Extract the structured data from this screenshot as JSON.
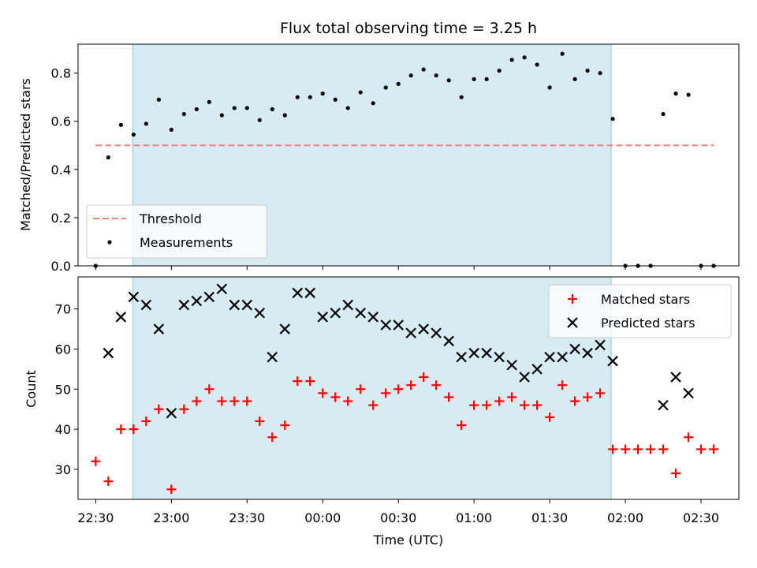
{
  "title": "Flux total observing time = 3.25 h",
  "colors": {
    "threshold": "#f08080",
    "measurement": "#000000",
    "matched": "#ff0000",
    "predicted": "#000000",
    "shade": "#add8e6"
  },
  "chart_data": [
    {
      "type": "scatter",
      "ylabel": "Matched/Predicted stars",
      "xlabel": "",
      "ylim": [
        0,
        0.92
      ],
      "yticks": [
        0.0,
        0.2,
        0.4,
        0.6,
        0.8
      ],
      "ytick_labels": [
        "0.0",
        "0.2",
        "0.4",
        "0.6",
        "0.8"
      ],
      "shaded_x_range": [
        "22:50",
        "01:56"
      ],
      "threshold": {
        "name": "Threshold",
        "value": 0.5,
        "x_start": "22:30",
        "x_end": "02:35",
        "style": "dashed"
      },
      "series": [
        {
          "name": "Measurements",
          "x": [
            "22:30",
            "22:35",
            "22:40",
            "22:45",
            "22:50",
            "22:55",
            "23:00",
            "23:05",
            "23:10",
            "23:15",
            "23:20",
            "23:25",
            "23:30",
            "23:35",
            "23:40",
            "23:45",
            "23:50",
            "23:55",
            "00:00",
            "00:05",
            "00:10",
            "00:15",
            "00:20",
            "00:25",
            "00:30",
            "00:35",
            "00:40",
            "00:45",
            "00:50",
            "00:55",
            "01:00",
            "01:05",
            "01:10",
            "01:15",
            "01:20",
            "01:25",
            "01:30",
            "01:35",
            "01:40",
            "01:45",
            "01:50",
            "01:55",
            "02:00",
            "02:05",
            "02:10",
            "02:15",
            "02:20",
            "02:25",
            "02:30",
            "02:35"
          ],
          "values": [
            0.0,
            0.45,
            0.585,
            0.545,
            0.59,
            0.69,
            0.565,
            0.63,
            0.65,
            0.68,
            0.625,
            0.655,
            0.655,
            0.605,
            0.65,
            0.625,
            0.7,
            0.7,
            0.715,
            0.69,
            0.655,
            0.72,
            0.675,
            0.74,
            0.755,
            0.79,
            0.815,
            0.79,
            0.77,
            0.7,
            0.775,
            0.775,
            0.81,
            0.855,
            0.865,
            0.835,
            0.74,
            0.88,
            0.775,
            0.81,
            0.8,
            0.61,
            0.0,
            0.0,
            0.0,
            0.63,
            0.715,
            0.71,
            0.0,
            0.0
          ]
        }
      ],
      "legend": {
        "placement": "lower-left",
        "entries": [
          "Threshold",
          "Measurements"
        ]
      }
    },
    {
      "type": "scatter",
      "ylabel": "Count",
      "xlabel": "Time (UTC)",
      "ylim": [
        22.5,
        78
      ],
      "yticks": [
        30,
        40,
        50,
        60,
        70
      ],
      "ytick_labels": [
        "30",
        "40",
        "50",
        "60",
        "70"
      ],
      "xlim": [
        "22:23",
        "02:45"
      ],
      "xticks": [
        "22:30",
        "23:00",
        "23:30",
        "00:00",
        "00:30",
        "01:00",
        "01:30",
        "02:00",
        "02:30"
      ],
      "shaded_x_range": [
        "22:50",
        "01:56"
      ],
      "series": [
        {
          "name": "Matched stars",
          "marker": "plus",
          "x": [
            "22:30",
            "22:35",
            "22:40",
            "22:45",
            "22:50",
            "22:55",
            "23:00",
            "23:05",
            "23:10",
            "23:15",
            "23:20",
            "23:25",
            "23:30",
            "23:35",
            "23:40",
            "23:45",
            "23:50",
            "23:55",
            "00:00",
            "00:05",
            "00:10",
            "00:15",
            "00:20",
            "00:25",
            "00:30",
            "00:35",
            "00:40",
            "00:45",
            "00:50",
            "00:55",
            "01:00",
            "01:05",
            "01:10",
            "01:15",
            "01:20",
            "01:25",
            "01:30",
            "01:35",
            "01:40",
            "01:45",
            "01:50",
            "01:55",
            "02:00",
            "02:05",
            "02:10",
            "02:15",
            "02:20",
            "02:25",
            "02:30",
            "02:35"
          ],
          "values": [
            32,
            27,
            40,
            40,
            42,
            45,
            25,
            45,
            47,
            50,
            47,
            47,
            47,
            42,
            38,
            41,
            52,
            52,
            49,
            48,
            47,
            50,
            46,
            49,
            50,
            51,
            53,
            51,
            48,
            41,
            46,
            46,
            47,
            48,
            46,
            46,
            43,
            51,
            47,
            48,
            49,
            35,
            35,
            35,
            35,
            35,
            29,
            38,
            35,
            35
          ]
        },
        {
          "name": "Predicted stars",
          "marker": "x",
          "x": [
            "22:35",
            "22:40",
            "22:45",
            "22:50",
            "22:55",
            "23:00",
            "23:05",
            "23:10",
            "23:15",
            "23:20",
            "23:25",
            "23:30",
            "23:35",
            "23:40",
            "23:45",
            "23:50",
            "23:55",
            "00:00",
            "00:05",
            "00:10",
            "00:15",
            "00:20",
            "00:25",
            "00:30",
            "00:35",
            "00:40",
            "00:45",
            "00:50",
            "00:55",
            "01:00",
            "01:05",
            "01:10",
            "01:15",
            "01:20",
            "01:25",
            "01:30",
            "01:35",
            "01:40",
            "01:45",
            "01:50",
            "01:55",
            "02:15",
            "02:20",
            "02:25"
          ],
          "values": [
            59,
            68,
            73,
            71,
            65,
            44,
            71,
            72,
            73,
            75,
            71,
            71,
            69,
            58,
            65,
            74,
            74,
            68,
            69,
            71,
            69,
            68,
            66,
            66,
            64,
            65,
            64,
            62,
            58,
            59,
            59,
            58,
            56,
            53,
            55,
            58,
            58,
            60,
            59,
            61,
            57,
            46,
            53,
            49
          ]
        }
      ],
      "legend": {
        "placement": "top-right",
        "entries": [
          "Matched stars",
          "Predicted stars"
        ]
      }
    }
  ]
}
